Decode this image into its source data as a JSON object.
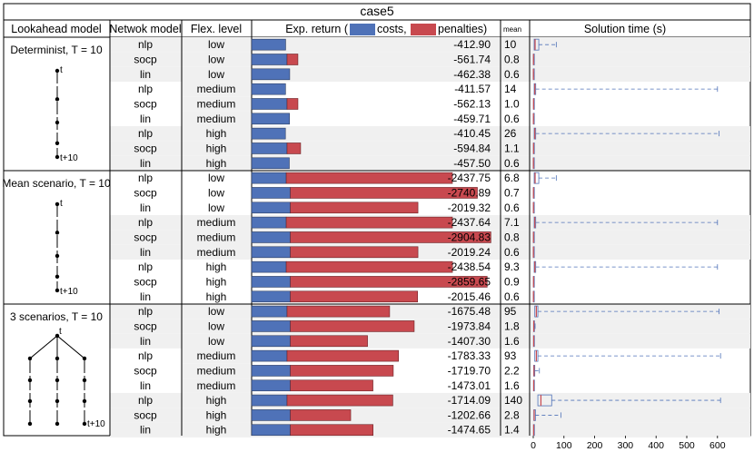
{
  "title": "case5",
  "headers": {
    "model": "Lookahead model",
    "network": "Netwok model",
    "flex": "Flex. level",
    "exp_prefix": "Exp. return (",
    "costs_label": "costs,",
    "penalties_label": "penalties)",
    "mean": "mean",
    "time": "Solution time (s)"
  },
  "colors": {
    "costs": "#4f72b8",
    "penalties": "#c8494f",
    "box": "#4f72b8",
    "median": "#c8494f",
    "shade": "#f0f0f0"
  },
  "groups": [
    {
      "label": "Determinist, T = 10",
      "tree": "chain",
      "t_label": "t",
      "t10_label": "t+10"
    },
    {
      "label": "Mean scenario, T = 10",
      "tree": "chain",
      "t_label": "t",
      "t10_label": "t+10"
    },
    {
      "label": "3 scenarios, T = 10",
      "tree": "tree3",
      "t_label": "t",
      "t10_label": "t+10"
    }
  ],
  "chart_data": {
    "type": "table",
    "title": "case5",
    "bar_axis_range": [
      0,
      3000
    ],
    "time_axis": {
      "range": [
        0,
        650
      ],
      "ticks": [
        0,
        100,
        200,
        300,
        400,
        500,
        600
      ]
    },
    "rows": [
      {
        "network": "nlp",
        "flex": "low",
        "total": "-412.90",
        "costs": 412.9,
        "penalties": 0,
        "mean": "10",
        "time": {
          "q1": 3,
          "median": 6,
          "q3": 18,
          "whisker_hi": 75
        }
      },
      {
        "network": "socp",
        "flex": "low",
        "total": "-561.74",
        "costs": 430,
        "penalties": 131.74,
        "mean": "0.8",
        "time": {
          "q1": 0.5,
          "median": 0.8,
          "q3": 1,
          "whisker_hi": 2
        }
      },
      {
        "network": "lin",
        "flex": "low",
        "total": "-462.38",
        "costs": 462.38,
        "penalties": 0,
        "mean": "0.6",
        "time": {
          "q1": 0.4,
          "median": 0.6,
          "q3": 0.8,
          "whisker_hi": 1.5
        }
      },
      {
        "network": "nlp",
        "flex": "medium",
        "total": "-411.57",
        "costs": 411.57,
        "penalties": 0,
        "mean": "14",
        "time": {
          "q1": 3,
          "median": 5,
          "q3": 8,
          "whisker_hi": 600
        }
      },
      {
        "network": "socp",
        "flex": "medium",
        "total": "-562.13",
        "costs": 430,
        "penalties": 132.13,
        "mean": "1.0",
        "time": {
          "q1": 0.6,
          "median": 1,
          "q3": 1.3,
          "whisker_hi": 2
        }
      },
      {
        "network": "lin",
        "flex": "medium",
        "total": "-459.71",
        "costs": 459.71,
        "penalties": 0,
        "mean": "0.6",
        "time": {
          "q1": 0.4,
          "median": 0.6,
          "q3": 0.8,
          "whisker_hi": 1.5
        }
      },
      {
        "network": "nlp",
        "flex": "high",
        "total": "-410.45",
        "costs": 410.45,
        "penalties": 0,
        "mean": "26",
        "time": {
          "q1": 3,
          "median": 5,
          "q3": 8,
          "whisker_hi": 605
        }
      },
      {
        "network": "socp",
        "flex": "high",
        "total": "-594.84",
        "costs": 430,
        "penalties": 164.84,
        "mean": "1.1",
        "time": {
          "q1": 0.6,
          "median": 1,
          "q3": 1.3,
          "whisker_hi": 2
        }
      },
      {
        "network": "lin",
        "flex": "high",
        "total": "-457.50",
        "costs": 457.5,
        "penalties": 0,
        "mean": "0.6",
        "time": {
          "q1": 0.4,
          "median": 0.6,
          "q3": 0.8,
          "whisker_hi": 1.5
        }
      },
      {
        "network": "nlp",
        "flex": "low",
        "total": "-2437.75",
        "costs": 420,
        "penalties": 2017.75,
        "mean": "6.8",
        "time": {
          "q1": 3,
          "median": 6,
          "q3": 18,
          "whisker_hi": 75
        }
      },
      {
        "network": "socp",
        "flex": "low",
        "total": "-2740.89",
        "costs": 470,
        "penalties": 2270.89,
        "mean": "0.7",
        "time": {
          "q1": 0.5,
          "median": 0.7,
          "q3": 1,
          "whisker_hi": 2
        }
      },
      {
        "network": "lin",
        "flex": "low",
        "total": "-2019.32",
        "costs": 470,
        "penalties": 1549.32,
        "mean": "0.6",
        "time": {
          "q1": 0.4,
          "median": 0.6,
          "q3": 0.8,
          "whisker_hi": 1.5
        }
      },
      {
        "network": "nlp",
        "flex": "medium",
        "total": "-2437.64",
        "costs": 420,
        "penalties": 2017.64,
        "mean": "7.1",
        "time": {
          "q1": 3,
          "median": 5,
          "q3": 8,
          "whisker_hi": 600
        }
      },
      {
        "network": "socp",
        "flex": "medium",
        "total": "-2904.83",
        "costs": 470,
        "penalties": 2434.83,
        "mean": "0.8",
        "time": {
          "q1": 0.5,
          "median": 0.8,
          "q3": 1,
          "whisker_hi": 2
        }
      },
      {
        "network": "lin",
        "flex": "medium",
        "total": "-2019.24",
        "costs": 470,
        "penalties": 1549.24,
        "mean": "0.6",
        "time": {
          "q1": 0.4,
          "median": 0.6,
          "q3": 0.8,
          "whisker_hi": 1.5
        }
      },
      {
        "network": "nlp",
        "flex": "high",
        "total": "-2438.54",
        "costs": 420,
        "penalties": 2018.54,
        "mean": "9.3",
        "time": {
          "q1": 3,
          "median": 5,
          "q3": 8,
          "whisker_hi": 600
        }
      },
      {
        "network": "socp",
        "flex": "high",
        "total": "-2859.65",
        "costs": 470,
        "penalties": 2389.65,
        "mean": "0.9",
        "time": {
          "q1": 0.5,
          "median": 0.9,
          "q3": 1.2,
          "whisker_hi": 2
        }
      },
      {
        "network": "lin",
        "flex": "high",
        "total": "-2015.46",
        "costs": 470,
        "penalties": 1545.46,
        "mean": "0.6",
        "time": {
          "q1": 0.4,
          "median": 0.6,
          "q3": 0.8,
          "whisker_hi": 1.5
        }
      },
      {
        "network": "nlp",
        "flex": "low",
        "total": "-1675.48",
        "costs": 430,
        "penalties": 1245.48,
        "mean": "95",
        "time": {
          "q1": 5,
          "median": 10,
          "q3": 15,
          "whisker_hi": 605
        }
      },
      {
        "network": "socp",
        "flex": "low",
        "total": "-1973.84",
        "costs": 470,
        "penalties": 1503.84,
        "mean": "1.8",
        "time": {
          "q1": 1,
          "median": 1.8,
          "q3": 3,
          "whisker_hi": 6
        }
      },
      {
        "network": "lin",
        "flex": "low",
        "total": "-1407.30",
        "costs": 470,
        "penalties": 937.3,
        "mean": "1.6",
        "time": {
          "q1": 0.8,
          "median": 1.5,
          "q3": 2,
          "whisker_hi": 3
        }
      },
      {
        "network": "nlp",
        "flex": "medium",
        "total": "-1783.33",
        "costs": 430,
        "penalties": 1353.33,
        "mean": "93",
        "time": {
          "q1": 5,
          "median": 10,
          "q3": 15,
          "whisker_hi": 610
        }
      },
      {
        "network": "socp",
        "flex": "medium",
        "total": "-1719.70",
        "costs": 470,
        "penalties": 1249.7,
        "mean": "2.2",
        "time": {
          "q1": 1.5,
          "median": 2.5,
          "q3": 5,
          "whisker_hi": 20
        }
      },
      {
        "network": "lin",
        "flex": "medium",
        "total": "-1473.01",
        "costs": 470,
        "penalties": 1003.01,
        "mean": "1.6",
        "time": {
          "q1": 0.8,
          "median": 1.5,
          "q3": 2,
          "whisker_hi": 3
        }
      },
      {
        "network": "nlp",
        "flex": "high",
        "total": "-1714.09",
        "costs": 430,
        "penalties": 1284.09,
        "mean": "140",
        "time": {
          "q1": 15,
          "median": 25,
          "q3": 60,
          "whisker_hi": 610
        }
      },
      {
        "network": "socp",
        "flex": "high",
        "total": "-1202.66",
        "costs": 470,
        "penalties": 732.66,
        "mean": "2.8",
        "time": {
          "q1": 2,
          "median": 3,
          "q3": 7,
          "whisker_hi": 90
        }
      },
      {
        "network": "lin",
        "flex": "high",
        "total": "-1474.65",
        "costs": 470,
        "penalties": 1004.65,
        "mean": "1.4",
        "time": {
          "q1": 0.8,
          "median": 1.4,
          "q3": 2,
          "whisker_hi": 3
        }
      }
    ]
  }
}
